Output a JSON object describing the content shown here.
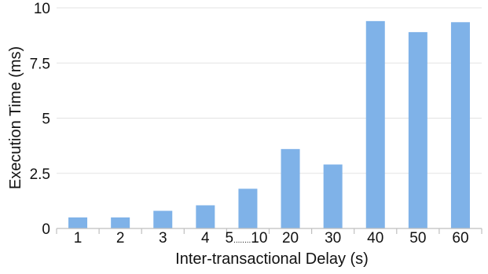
{
  "chart_data": {
    "type": "bar",
    "categories": [
      "1",
      "2",
      "3",
      "4",
      "5........10",
      "20",
      "30",
      "40",
      "50",
      "60"
    ],
    "values": [
      0.5,
      0.5,
      0.8,
      1.05,
      1.8,
      3.6,
      2.9,
      9.4,
      8.9,
      9.35
    ],
    "values_note_last": null,
    "xlabel": "Inter-transactional Delay (s)",
    "ylabel": "Execution Time (ms)",
    "ylim": [
      0,
      10
    ],
    "yticks": [
      "0",
      "2.5",
      "5",
      "7.5",
      "10"
    ],
    "ytick_values": [
      0,
      2.5,
      5,
      7.5,
      10
    ],
    "grid": true,
    "colors": {
      "bar": "#7fb2e8"
    }
  }
}
